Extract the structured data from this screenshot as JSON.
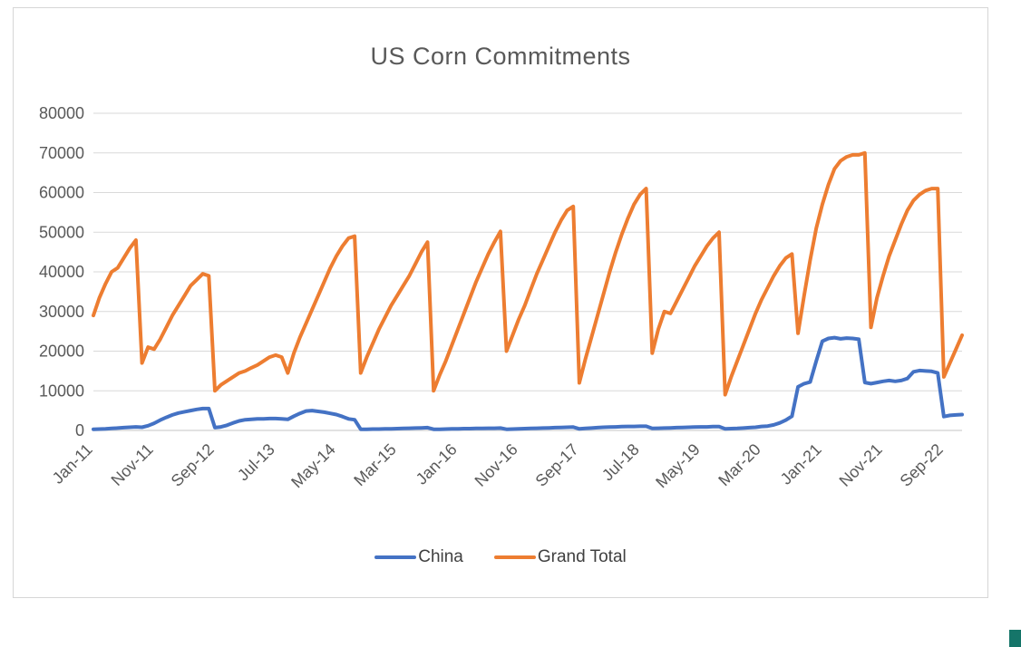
{
  "colors": {
    "china_line": "#4472C4",
    "grand_total_line": "#ED7D31",
    "gridline": "#D9D9D9",
    "axis_text": "#595959",
    "title_text": "#595959",
    "frame_border": "#D6D6D6",
    "corner_fragment": "#157569"
  },
  "chart_data": {
    "type": "line",
    "title": "US Corn Commitments",
    "xlabel": "",
    "ylabel": "",
    "ylim": [
      0,
      80000
    ],
    "y_ticks": [
      0,
      10000,
      20000,
      30000,
      40000,
      50000,
      60000,
      70000,
      80000
    ],
    "grid": true,
    "legend_position": "bottom",
    "n_points": 144,
    "x_tick_indices": [
      0,
      10,
      20,
      30,
      40,
      50,
      60,
      70,
      80,
      90,
      100,
      110,
      120,
      130,
      140
    ],
    "x_tick_labels": [
      "Jan-11",
      "Nov-11",
      "Sep-12",
      "Jul-13",
      "May-14",
      "Mar-15",
      "Jan-16",
      "Nov-16",
      "Sep-17",
      "Jul-18",
      "May-19",
      "Mar-20",
      "Jan-21",
      "Nov-21",
      "Sep-22"
    ],
    "series": [
      {
        "name": "China",
        "color": "#4472C4",
        "values": [
          300,
          350,
          400,
          500,
          600,
          700,
          800,
          900,
          800,
          1200,
          1800,
          2600,
          3300,
          3900,
          4400,
          4700,
          5000,
          5300,
          5500,
          5500,
          700,
          900,
          1300,
          1900,
          2400,
          2700,
          2800,
          2900,
          2900,
          3000,
          3000,
          2900,
          2800,
          3600,
          4300,
          4900,
          5000,
          4800,
          4600,
          4300,
          4000,
          3500,
          2900,
          2700,
          300,
          300,
          350,
          350,
          400,
          400,
          450,
          500,
          550,
          600,
          650,
          700,
          300,
          300,
          350,
          400,
          400,
          450,
          450,
          500,
          500,
          550,
          550,
          600,
          300,
          350,
          400,
          450,
          500,
          550,
          600,
          650,
          700,
          750,
          800,
          850,
          400,
          500,
          600,
          700,
          800,
          850,
          900,
          950,
          1000,
          1000,
          1050,
          1050,
          500,
          550,
          600,
          650,
          700,
          750,
          800,
          850,
          900,
          900,
          950,
          950,
          400,
          450,
          500,
          600,
          700,
          800,
          1000,
          1100,
          1400,
          1900,
          2600,
          3600,
          11000,
          11800,
          12200,
          17500,
          22500,
          23200,
          23400,
          23100,
          23300,
          23200,
          23000,
          12100,
          11800,
          12100,
          12400,
          12600,
          12400,
          12600,
          13100,
          14800,
          15100,
          15000,
          14900,
          14500,
          3500,
          3800,
          3900,
          4000
        ]
      },
      {
        "name": "Grand Total",
        "color": "#ED7D31",
        "values": [
          29000,
          33500,
          37000,
          40000,
          41000,
          43500,
          46000,
          48000,
          17000,
          21000,
          20500,
          23000,
          26000,
          29000,
          31500,
          34000,
          36500,
          38000,
          39500,
          39000,
          10000,
          11500,
          12500,
          13500,
          14500,
          15000,
          15800,
          16500,
          17500,
          18500,
          19000,
          18500,
          14500,
          19500,
          23500,
          27000,
          30500,
          34000,
          37500,
          41000,
          44000,
          46500,
          48500,
          49000,
          14500,
          18500,
          22000,
          25500,
          28500,
          31500,
          34000,
          36500,
          39000,
          42000,
          45000,
          47500,
          10000,
          14000,
          17500,
          21500,
          25500,
          29500,
          33500,
          37500,
          41000,
          44500,
          47500,
          50200,
          20000,
          24000,
          28000,
          31500,
          35500,
          39500,
          43000,
          46500,
          50000,
          53000,
          55500,
          56500,
          12000,
          18000,
          23500,
          29000,
          34500,
          40000,
          45000,
          49500,
          53500,
          57000,
          59500,
          61000,
          19500,
          25500,
          30000,
          29500,
          32500,
          35500,
          38500,
          41500,
          44000,
          46500,
          48500,
          50000,
          9000,
          13500,
          17500,
          21500,
          25500,
          29500,
          33000,
          36000,
          39000,
          41500,
          43500,
          44500,
          24500,
          34000,
          43000,
          51000,
          57000,
          62000,
          66000,
          68000,
          69000,
          69500,
          69500,
          70000,
          26000,
          33500,
          39000,
          44000,
          48000,
          52000,
          55500,
          58000,
          59500,
          60500,
          61000,
          61000,
          13500,
          17000,
          20500,
          24000
        ]
      }
    ]
  },
  "legend": {
    "china_label": "China",
    "grand_total_label": "Grand Total"
  }
}
